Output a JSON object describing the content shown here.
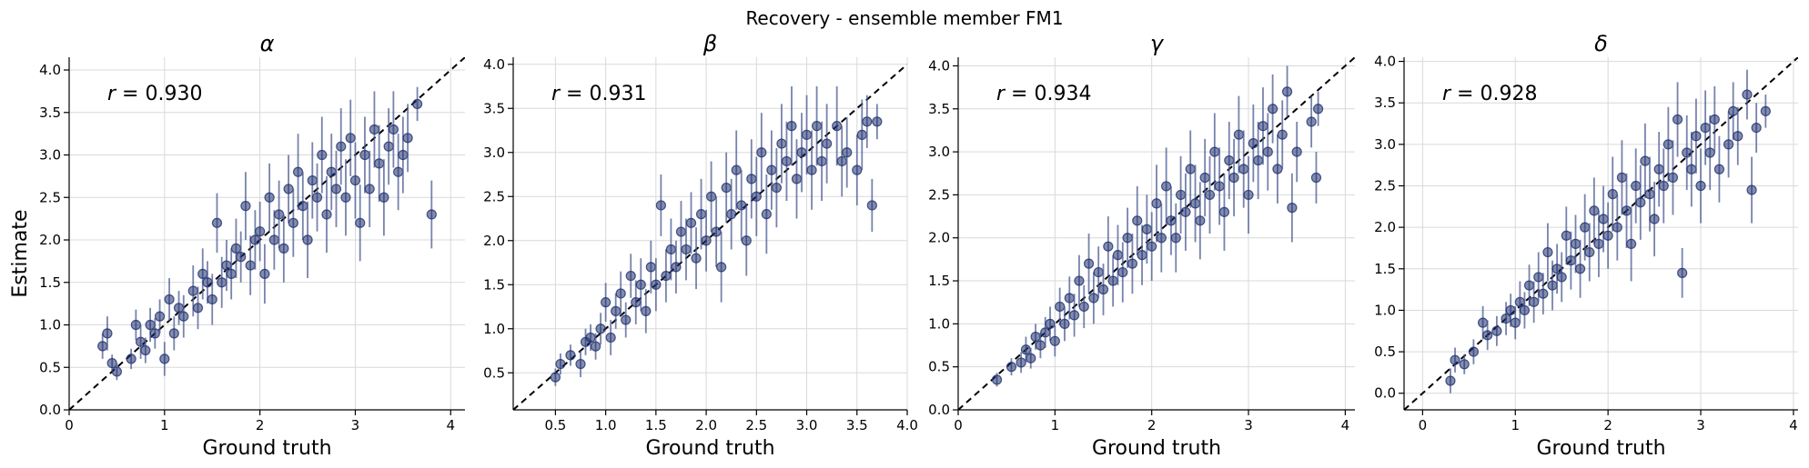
{
  "figure": {
    "title": "Recovery - ensemble member FM1",
    "point_color": "#1f2f6e",
    "errorbar_color": "#4a5a90"
  },
  "chart_data": [
    {
      "type": "scatter",
      "title": "α",
      "xlabel": "Ground truth",
      "ylabel": "Estimate",
      "annotation": "r = 0.930",
      "xlim": [
        0,
        4.15
      ],
      "ylim": [
        0,
        4.15
      ],
      "xticks": [
        0,
        1,
        2,
        3,
        4
      ],
      "yticks": [
        0.0,
        0.5,
        1.0,
        1.5,
        2.0,
        2.5,
        3.0,
        3.5,
        4.0
      ],
      "grid": true,
      "reference_line": "identity",
      "points": [
        [
          0.35,
          0.75,
          0.15
        ],
        [
          0.4,
          0.9,
          0.2
        ],
        [
          0.45,
          0.55,
          0.1
        ],
        [
          0.5,
          0.45,
          0.1
        ],
        [
          0.65,
          0.6,
          0.12
        ],
        [
          0.7,
          1.0,
          0.18
        ],
        [
          0.75,
          0.8,
          0.2
        ],
        [
          0.8,
          0.7,
          0.15
        ],
        [
          0.85,
          1.0,
          0.2
        ],
        [
          0.9,
          0.9,
          0.18
        ],
        [
          0.95,
          1.1,
          0.2
        ],
        [
          1.0,
          0.6,
          0.2
        ],
        [
          1.05,
          1.3,
          0.25
        ],
        [
          1.1,
          0.9,
          0.2
        ],
        [
          1.15,
          1.2,
          0.2
        ],
        [
          1.2,
          1.1,
          0.25
        ],
        [
          1.3,
          1.4,
          0.3
        ],
        [
          1.35,
          1.2,
          0.25
        ],
        [
          1.4,
          1.6,
          0.3
        ],
        [
          1.45,
          1.5,
          0.25
        ],
        [
          1.5,
          1.3,
          0.3
        ],
        [
          1.55,
          2.2,
          0.35
        ],
        [
          1.6,
          1.5,
          0.3
        ],
        [
          1.65,
          1.7,
          0.3
        ],
        [
          1.7,
          1.6,
          0.3
        ],
        [
          1.75,
          1.9,
          0.35
        ],
        [
          1.8,
          1.8,
          0.3
        ],
        [
          1.85,
          2.4,
          0.4
        ],
        [
          1.9,
          1.7,
          0.35
        ],
        [
          1.95,
          2.0,
          0.35
        ],
        [
          2.0,
          2.1,
          0.35
        ],
        [
          2.05,
          1.6,
          0.35
        ],
        [
          2.1,
          2.5,
          0.4
        ],
        [
          2.15,
          2.0,
          0.35
        ],
        [
          2.2,
          2.3,
          0.4
        ],
        [
          2.25,
          1.9,
          0.4
        ],
        [
          2.3,
          2.6,
          0.4
        ],
        [
          2.35,
          2.2,
          0.4
        ],
        [
          2.4,
          2.8,
          0.45
        ],
        [
          2.45,
          2.4,
          0.4
        ],
        [
          2.5,
          2.0,
          0.45
        ],
        [
          2.55,
          2.7,
          0.45
        ],
        [
          2.6,
          2.5,
          0.4
        ],
        [
          2.65,
          3.0,
          0.45
        ],
        [
          2.7,
          2.3,
          0.45
        ],
        [
          2.75,
          2.8,
          0.45
        ],
        [
          2.8,
          2.6,
          0.45
        ],
        [
          2.85,
          3.1,
          0.45
        ],
        [
          2.9,
          2.5,
          0.45
        ],
        [
          2.95,
          3.2,
          0.45
        ],
        [
          3.0,
          2.7,
          0.45
        ],
        [
          3.05,
          2.2,
          0.45
        ],
        [
          3.1,
          3.0,
          0.45
        ],
        [
          3.15,
          2.6,
          0.45
        ],
        [
          3.2,
          3.3,
          0.45
        ],
        [
          3.25,
          2.9,
          0.45
        ],
        [
          3.3,
          2.5,
          0.45
        ],
        [
          3.35,
          3.1,
          0.45
        ],
        [
          3.4,
          3.3,
          0.45
        ],
        [
          3.45,
          2.8,
          0.45
        ],
        [
          3.5,
          3.0,
          0.45
        ],
        [
          3.55,
          3.2,
          0.4
        ],
        [
          3.65,
          3.6,
          0.2
        ],
        [
          3.8,
          2.3,
          0.4
        ]
      ]
    },
    {
      "type": "scatter",
      "title": "β",
      "xlabel": "Ground truth",
      "ylabel": "",
      "annotation": "r = 0.931",
      "xlim": [
        0.08,
        4.0
      ],
      "ylim": [
        0.08,
        4.08
      ],
      "xticks": [
        0.5,
        1.0,
        1.5,
        2.0,
        2.5,
        3.0,
        3.5,
        4.0
      ],
      "yticks": [
        0.5,
        1.0,
        1.5,
        2.0,
        2.5,
        3.0,
        3.5,
        4.0
      ],
      "grid": true,
      "reference_line": "identity",
      "points": [
        [
          0.5,
          0.45,
          0.1
        ],
        [
          0.55,
          0.6,
          0.12
        ],
        [
          0.65,
          0.7,
          0.12
        ],
        [
          0.75,
          0.6,
          0.15
        ],
        [
          0.8,
          0.85,
          0.15
        ],
        [
          0.85,
          0.9,
          0.15
        ],
        [
          0.9,
          0.8,
          0.15
        ],
        [
          0.95,
          1.0,
          0.18
        ],
        [
          1.0,
          1.3,
          0.22
        ],
        [
          1.05,
          0.9,
          0.2
        ],
        [
          1.1,
          1.2,
          0.2
        ],
        [
          1.15,
          1.4,
          0.25
        ],
        [
          1.2,
          1.1,
          0.2
        ],
        [
          1.25,
          1.6,
          0.25
        ],
        [
          1.3,
          1.3,
          0.25
        ],
        [
          1.35,
          1.5,
          0.3
        ],
        [
          1.4,
          1.2,
          0.25
        ],
        [
          1.45,
          1.7,
          0.3
        ],
        [
          1.5,
          1.5,
          0.3
        ],
        [
          1.55,
          2.4,
          0.35
        ],
        [
          1.6,
          1.6,
          0.3
        ],
        [
          1.65,
          1.9,
          0.35
        ],
        [
          1.7,
          1.7,
          0.3
        ],
        [
          1.75,
          2.1,
          0.35
        ],
        [
          1.8,
          1.9,
          0.35
        ],
        [
          1.85,
          2.2,
          0.35
        ],
        [
          1.9,
          1.8,
          0.35
        ],
        [
          1.95,
          2.3,
          0.4
        ],
        [
          2.0,
          2.0,
          0.35
        ],
        [
          2.05,
          2.5,
          0.4
        ],
        [
          2.1,
          2.1,
          0.4
        ],
        [
          2.15,
          1.7,
          0.4
        ],
        [
          2.2,
          2.6,
          0.4
        ],
        [
          2.25,
          2.3,
          0.4
        ],
        [
          2.3,
          2.8,
          0.45
        ],
        [
          2.35,
          2.4,
          0.4
        ],
        [
          2.4,
          2.0,
          0.4
        ],
        [
          2.45,
          2.7,
          0.45
        ],
        [
          2.5,
          2.5,
          0.45
        ],
        [
          2.55,
          3.0,
          0.45
        ],
        [
          2.6,
          2.3,
          0.45
        ],
        [
          2.65,
          2.8,
          0.45
        ],
        [
          2.7,
          2.6,
          0.45
        ],
        [
          2.75,
          3.1,
          0.45
        ],
        [
          2.8,
          2.9,
          0.45
        ],
        [
          2.85,
          3.3,
          0.45
        ],
        [
          2.9,
          2.7,
          0.45
        ],
        [
          2.95,
          3.0,
          0.45
        ],
        [
          3.0,
          3.2,
          0.45
        ],
        [
          3.05,
          2.8,
          0.45
        ],
        [
          3.1,
          3.3,
          0.45
        ],
        [
          3.15,
          2.9,
          0.45
        ],
        [
          3.2,
          3.1,
          0.45
        ],
        [
          3.3,
          3.3,
          0.45
        ],
        [
          3.35,
          2.9,
          0.4
        ],
        [
          3.4,
          3.0,
          0.4
        ],
        [
          3.5,
          2.8,
          0.4
        ],
        [
          3.55,
          3.2,
          0.4
        ],
        [
          3.6,
          3.35,
          0.3
        ],
        [
          3.65,
          2.4,
          0.3
        ],
        [
          3.7,
          3.35,
          0.2
        ]
      ]
    },
    {
      "type": "scatter",
      "title": "γ",
      "xlabel": "Ground truth",
      "ylabel": "",
      "annotation": "r = 0.934",
      "xlim": [
        0,
        4.1
      ],
      "ylim": [
        0,
        4.1
      ],
      "xticks": [
        0,
        1,
        2,
        3,
        4
      ],
      "yticks": [
        0.0,
        0.5,
        1.0,
        1.5,
        2.0,
        2.5,
        3.0,
        3.5,
        4.0
      ],
      "grid": true,
      "reference_line": "identity",
      "points": [
        [
          0.4,
          0.35,
          0.08
        ],
        [
          0.55,
          0.5,
          0.1
        ],
        [
          0.65,
          0.55,
          0.12
        ],
        [
          0.7,
          0.7,
          0.15
        ],
        [
          0.75,
          0.6,
          0.12
        ],
        [
          0.8,
          0.85,
          0.15
        ],
        [
          0.85,
          0.75,
          0.15
        ],
        [
          0.9,
          0.9,
          0.18
        ],
        [
          0.95,
          1.0,
          0.2
        ],
        [
          1.0,
          0.8,
          0.18
        ],
        [
          1.05,
          1.2,
          0.22
        ],
        [
          1.1,
          1.0,
          0.2
        ],
        [
          1.15,
          1.3,
          0.25
        ],
        [
          1.2,
          1.1,
          0.25
        ],
        [
          1.25,
          1.5,
          0.3
        ],
        [
          1.3,
          1.2,
          0.25
        ],
        [
          1.35,
          1.7,
          0.35
        ],
        [
          1.4,
          1.3,
          0.3
        ],
        [
          1.45,
          1.6,
          0.3
        ],
        [
          1.5,
          1.4,
          0.3
        ],
        [
          1.55,
          1.9,
          0.35
        ],
        [
          1.6,
          1.5,
          0.3
        ],
        [
          1.65,
          1.8,
          0.35
        ],
        [
          1.7,
          1.6,
          0.35
        ],
        [
          1.75,
          2.0,
          0.35
        ],
        [
          1.8,
          1.7,
          0.35
        ],
        [
          1.85,
          2.2,
          0.4
        ],
        [
          1.9,
          1.8,
          0.35
        ],
        [
          1.95,
          2.1,
          0.4
        ],
        [
          2.0,
          1.9,
          0.4
        ],
        [
          2.05,
          2.4,
          0.45
        ],
        [
          2.1,
          2.0,
          0.4
        ],
        [
          2.15,
          2.6,
          0.45
        ],
        [
          2.2,
          2.2,
          0.4
        ],
        [
          2.25,
          2.0,
          0.4
        ],
        [
          2.3,
          2.5,
          0.45
        ],
        [
          2.35,
          2.3,
          0.45
        ],
        [
          2.4,
          2.8,
          0.45
        ],
        [
          2.45,
          2.4,
          0.45
        ],
        [
          2.5,
          2.2,
          0.45
        ],
        [
          2.55,
          2.7,
          0.45
        ],
        [
          2.6,
          2.5,
          0.45
        ],
        [
          2.65,
          3.0,
          0.45
        ],
        [
          2.7,
          2.6,
          0.45
        ],
        [
          2.75,
          2.3,
          0.45
        ],
        [
          2.8,
          2.9,
          0.45
        ],
        [
          2.85,
          2.7,
          0.45
        ],
        [
          2.9,
          3.2,
          0.45
        ],
        [
          2.95,
          2.8,
          0.45
        ],
        [
          3.0,
          2.5,
          0.45
        ],
        [
          3.05,
          3.1,
          0.45
        ],
        [
          3.1,
          2.9,
          0.45
        ],
        [
          3.15,
          3.3,
          0.45
        ],
        [
          3.2,
          3.0,
          0.45
        ],
        [
          3.25,
          3.5,
          0.4
        ],
        [
          3.3,
          2.8,
          0.4
        ],
        [
          3.35,
          3.2,
          0.4
        ],
        [
          3.4,
          3.7,
          0.3
        ],
        [
          3.45,
          2.35,
          0.4
        ],
        [
          3.5,
          3.0,
          0.35
        ],
        [
          3.65,
          3.35,
          0.3
        ],
        [
          3.7,
          2.7,
          0.3
        ],
        [
          3.72,
          3.5,
          0.2
        ]
      ]
    },
    {
      "type": "scatter",
      "title": "δ",
      "xlabel": "Ground truth",
      "ylabel": "",
      "annotation": "r = 0.928",
      "xlim": [
        -0.2,
        4.05
      ],
      "ylim": [
        -0.2,
        4.05
      ],
      "xticks": [
        0,
        1,
        2,
        3,
        4
      ],
      "yticks": [
        0.0,
        0.5,
        1.0,
        1.5,
        2.0,
        2.5,
        3.0,
        3.5,
        4.0
      ],
      "grid": true,
      "reference_line": "identity",
      "points": [
        [
          0.3,
          0.15,
          0.15
        ],
        [
          0.35,
          0.4,
          0.15
        ],
        [
          0.45,
          0.35,
          0.12
        ],
        [
          0.55,
          0.5,
          0.15
        ],
        [
          0.65,
          0.85,
          0.2
        ],
        [
          0.7,
          0.7,
          0.18
        ],
        [
          0.8,
          0.75,
          0.18
        ],
        [
          0.9,
          0.9,
          0.2
        ],
        [
          0.95,
          1.0,
          0.2
        ],
        [
          1.0,
          0.85,
          0.2
        ],
        [
          1.05,
          1.1,
          0.25
        ],
        [
          1.1,
          1.0,
          0.22
        ],
        [
          1.15,
          1.3,
          0.25
        ],
        [
          1.2,
          1.1,
          0.25
        ],
        [
          1.25,
          1.4,
          0.3
        ],
        [
          1.3,
          1.2,
          0.25
        ],
        [
          1.35,
          1.7,
          0.35
        ],
        [
          1.4,
          1.3,
          0.3
        ],
        [
          1.45,
          1.5,
          0.3
        ],
        [
          1.5,
          1.4,
          0.3
        ],
        [
          1.55,
          1.9,
          0.35
        ],
        [
          1.6,
          1.6,
          0.35
        ],
        [
          1.65,
          1.8,
          0.35
        ],
        [
          1.7,
          1.5,
          0.35
        ],
        [
          1.75,
          2.0,
          0.4
        ],
        [
          1.8,
          1.7,
          0.35
        ],
        [
          1.85,
          2.2,
          0.4
        ],
        [
          1.9,
          1.8,
          0.4
        ],
        [
          1.95,
          2.1,
          0.4
        ],
        [
          2.0,
          1.9,
          0.4
        ],
        [
          2.05,
          2.4,
          0.45
        ],
        [
          2.1,
          2.0,
          0.4
        ],
        [
          2.15,
          2.6,
          0.45
        ],
        [
          2.2,
          2.2,
          0.45
        ],
        [
          2.25,
          1.8,
          0.45
        ],
        [
          2.3,
          2.5,
          0.45
        ],
        [
          2.35,
          2.3,
          0.45
        ],
        [
          2.4,
          2.8,
          0.45
        ],
        [
          2.45,
          2.4,
          0.45
        ],
        [
          2.5,
          2.1,
          0.45
        ],
        [
          2.55,
          2.7,
          0.45
        ],
        [
          2.6,
          2.5,
          0.45
        ],
        [
          2.65,
          3.0,
          0.45
        ],
        [
          2.7,
          2.6,
          0.45
        ],
        [
          2.75,
          3.3,
          0.45
        ],
        [
          2.8,
          1.45,
          0.3
        ],
        [
          2.85,
          2.9,
          0.45
        ],
        [
          2.9,
          2.7,
          0.45
        ],
        [
          2.95,
          3.1,
          0.45
        ],
        [
          3.0,
          2.5,
          0.45
        ],
        [
          3.05,
          3.2,
          0.45
        ],
        [
          3.1,
          2.9,
          0.45
        ],
        [
          3.15,
          3.3,
          0.4
        ],
        [
          3.2,
          2.7,
          0.4
        ],
        [
          3.3,
          3.0,
          0.4
        ],
        [
          3.35,
          3.4,
          0.35
        ],
        [
          3.4,
          3.1,
          0.35
        ],
        [
          3.5,
          3.6,
          0.3
        ],
        [
          3.55,
          2.45,
          0.4
        ],
        [
          3.6,
          3.2,
          0.3
        ],
        [
          3.7,
          3.4,
          0.2
        ]
      ]
    }
  ]
}
